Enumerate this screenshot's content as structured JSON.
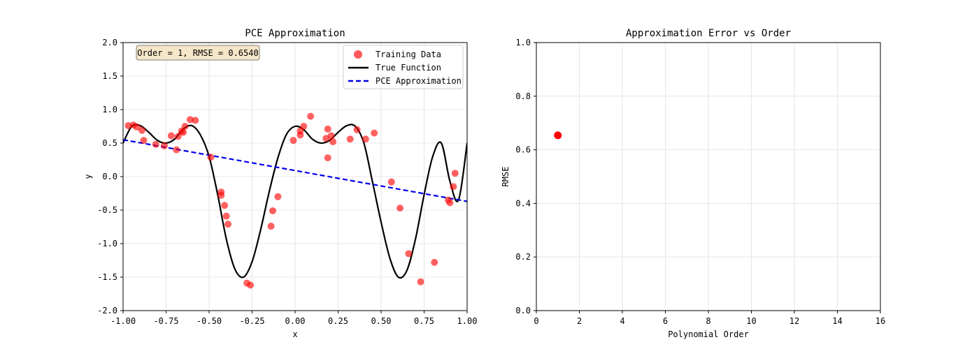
{
  "chart_data": [
    {
      "type": "scatter+line",
      "title": "PCE Approximation",
      "xlabel": "x",
      "ylabel": "y",
      "xlim": [
        -1.0,
        1.0
      ],
      "ylim": [
        -2.0,
        2.0
      ],
      "xticks": [
        -1.0,
        -0.75,
        -0.5,
        -0.25,
        0.0,
        0.25,
        0.5,
        0.75,
        1.0
      ],
      "xtick_labels": [
        "-1.00",
        "-0.75",
        "-0.50",
        "-0.25",
        "0.00",
        "0.25",
        "0.50",
        "0.75",
        "1.00"
      ],
      "yticks": [
        -2.0,
        -1.5,
        -1.0,
        -0.5,
        0.0,
        0.5,
        1.0,
        1.5,
        2.0
      ],
      "ytick_labels": [
        "-2.0",
        "-1.5",
        "-1.0",
        "-0.5",
        "0.0",
        "0.5",
        "1.0",
        "1.5",
        "2.0"
      ],
      "grid": true,
      "annotation": "Order = 1, RMSE = 0.6540",
      "legend_position": "top-right",
      "legend": [
        "Training Data",
        "True Function",
        "PCE Approximation"
      ],
      "colors": {
        "training": "#ff0000",
        "true": "#000000",
        "approx": "#0000ee",
        "annot_bg": "#f5e6c8",
        "annot_border": "#7f7f7f",
        "grid": "#e0e0e0"
      },
      "series": [
        {
          "name": "Training Data",
          "kind": "scatter",
          "x": [
            -0.97,
            -0.94,
            -0.92,
            -0.89,
            -0.88,
            -0.81,
            -0.76,
            -0.72,
            -0.69,
            -0.68,
            -0.66,
            -0.65,
            -0.64,
            -0.61,
            -0.58,
            -0.49,
            -0.43,
            -0.43,
            -0.41,
            -0.4,
            -0.39,
            -0.28,
            -0.26,
            -0.14,
            -0.13,
            -0.1,
            -0.01,
            0.03,
            0.03,
            0.05,
            0.09,
            0.18,
            0.19,
            0.19,
            0.21,
            0.22,
            0.32,
            0.36,
            0.41,
            0.46,
            0.56,
            0.61,
            0.66,
            0.73,
            0.81,
            0.89,
            0.9,
            0.92,
            0.93
          ],
          "y": [
            0.76,
            0.77,
            0.74,
            0.69,
            0.54,
            0.48,
            0.46,
            0.61,
            0.4,
            0.6,
            0.68,
            0.66,
            0.75,
            0.85,
            0.84,
            0.29,
            -0.23,
            -0.28,
            -0.43,
            -0.59,
            -0.71,
            -1.59,
            -1.62,
            -0.74,
            -0.51,
            -0.3,
            0.54,
            0.68,
            0.62,
            0.75,
            0.9,
            0.57,
            0.71,
            0.28,
            0.61,
            0.52,
            0.56,
            0.7,
            0.56,
            0.65,
            -0.08,
            -0.47,
            -1.15,
            -1.57,
            -1.28,
            -0.35,
            -0.39,
            -0.15,
            0.05
          ]
        },
        {
          "name": "True Function",
          "kind": "line",
          "x": [
            -1.0,
            -0.95,
            -0.9,
            -0.85,
            -0.8,
            -0.75,
            -0.7,
            -0.65,
            -0.6,
            -0.55,
            -0.5,
            -0.45,
            -0.4,
            -0.35,
            -0.3,
            -0.25,
            -0.2,
            -0.15,
            -0.1,
            -0.05,
            0.0,
            0.05,
            0.1,
            0.15,
            0.2,
            0.25,
            0.3,
            0.35,
            0.4,
            0.45,
            0.5,
            0.55,
            0.6,
            0.65,
            0.7,
            0.75,
            0.8,
            0.85,
            0.9,
            0.95,
            1.0
          ],
          "y": [
            0.5,
            0.75,
            0.76,
            0.66,
            0.54,
            0.5,
            0.56,
            0.71,
            0.76,
            0.62,
            0.3,
            -0.27,
            -0.93,
            -1.38,
            -1.5,
            -1.27,
            -0.79,
            -0.22,
            0.28,
            0.63,
            0.75,
            0.7,
            0.56,
            0.5,
            0.54,
            0.66,
            0.76,
            0.75,
            0.5,
            -0.08,
            -0.68,
            -1.21,
            -1.5,
            -1.4,
            -0.93,
            -0.27,
            0.3,
            0.5,
            -0.07,
            -0.35,
            0.5
          ]
        },
        {
          "name": "PCE Approximation",
          "kind": "line",
          "x": [
            -1.0,
            1.0
          ],
          "y": [
            0.55,
            -0.37
          ]
        }
      ]
    },
    {
      "type": "scatter",
      "title": "Approximation Error vs Order",
      "xlabel": "Polynomial Order",
      "ylabel": "RMSE",
      "xlim": [
        0,
        16
      ],
      "ylim": [
        0.0,
        1.0
      ],
      "xticks": [
        0,
        2,
        4,
        6,
        8,
        10,
        12,
        14,
        16
      ],
      "xtick_labels": [
        "0",
        "2",
        "4",
        "6",
        "8",
        "10",
        "12",
        "14",
        "16"
      ],
      "yticks": [
        0.0,
        0.2,
        0.4,
        0.6,
        0.8,
        1.0
      ],
      "ytick_labels": [
        "0.0",
        "0.2",
        "0.4",
        "0.6",
        "0.8",
        "1.0"
      ],
      "grid": true,
      "colors": {
        "point": "#ff0000",
        "grid": "#e0e0e0"
      },
      "series": [
        {
          "name": "RMSE",
          "kind": "scatter",
          "x": [
            1
          ],
          "y": [
            0.654
          ]
        }
      ]
    }
  ]
}
